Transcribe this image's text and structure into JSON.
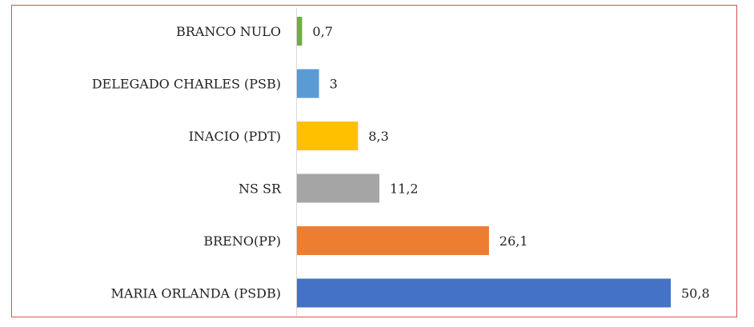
{
  "chart_data": {
    "type": "bar",
    "orientation": "horizontal",
    "categories": [
      "BRANCO NULO",
      "DELEGADO CHARLES (PSB)",
      "INACIO (PDT)",
      "NS SR",
      "BRENO(PP)",
      "MARIA ORLANDA (PSDB)"
    ],
    "values": [
      0.7,
      3,
      8.3,
      11.2,
      26.1,
      50.8
    ],
    "value_labels": [
      "0,7",
      "3",
      "8,3",
      "11,2",
      "26,1",
      "50,8"
    ],
    "colors": [
      "#70ad47",
      "#5b9bd5",
      "#ffc000",
      "#a5a5a5",
      "#ed7d31",
      "#4472c4"
    ],
    "title": "",
    "xlabel": "",
    "ylabel": "",
    "xlim": [
      0,
      50.8
    ],
    "grid": false,
    "legend": "none"
  }
}
